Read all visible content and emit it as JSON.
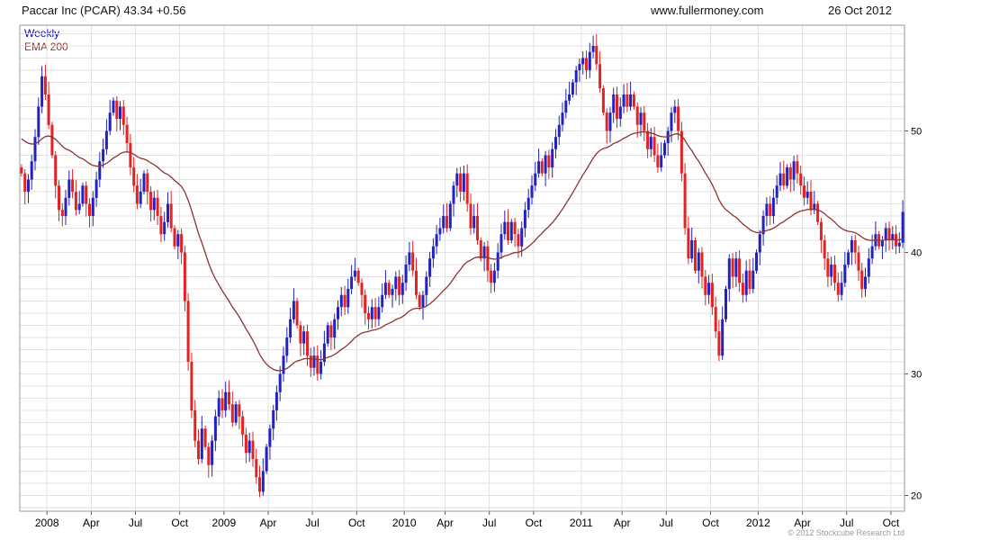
{
  "header": {
    "title": "Paccar Inc (PCAR)",
    "last_price": "43.34",
    "change": "+0.56",
    "website": "www.fullermoney.com",
    "date": "26 Oct 2012"
  },
  "legend": {
    "timeframe": "Weekly",
    "overlay": "EMA 200"
  },
  "footer": {
    "copyright": "© 2012 Stockcube Research Ltd"
  },
  "chart_data": {
    "type": "candlestick",
    "title": "Paccar Inc (PCAR) weekly candlestick chart with 200-day EMA",
    "interval": "weekly",
    "approx_start": "Nov 2007",
    "approx_end": "26 Oct 2012",
    "last_close": 43.34,
    "change": 0.56,
    "colors": {
      "up": "#2222c0",
      "down": "#e42222",
      "ema": "#8b3434",
      "grid": "#e2e2e2",
      "border": "#9a9a9a",
      "tick": "#555555"
    },
    "y_axis": {
      "side": "right",
      "ticks": [
        50,
        40,
        30,
        20
      ],
      "range": [
        18.7,
        58.7
      ]
    },
    "x_axis": {
      "ticks": [
        {
          "label": "2008",
          "week": 8
        },
        {
          "label": "Apr",
          "week": 21
        },
        {
          "label": "Jul",
          "week": 34
        },
        {
          "label": "Oct",
          "week": 47
        },
        {
          "label": "2009",
          "week": 60
        },
        {
          "label": "Apr",
          "week": 73
        },
        {
          "label": "Jul",
          "week": 86
        },
        {
          "label": "Oct",
          "week": 99
        },
        {
          "label": "2010",
          "week": 113
        },
        {
          "label": "Apr",
          "week": 125
        },
        {
          "label": "Jul",
          "week": 138
        },
        {
          "label": "Oct",
          "week": 151
        },
        {
          "label": "2011",
          "week": 165
        },
        {
          "label": "Apr",
          "week": 177
        },
        {
          "label": "Jul",
          "week": 190
        },
        {
          "label": "Oct",
          "week": 203
        },
        {
          "label": "2012",
          "week": 217
        },
        {
          "label": "Apr",
          "week": 230
        },
        {
          "label": "Jul",
          "week": 243
        },
        {
          "label": "Oct",
          "week": 256
        }
      ]
    },
    "ema": {
      "label": "EMA 200",
      "period_weeks": 40,
      "seed": 49.5
    },
    "first_open": 47.0,
    "closes": [
      46.5,
      45.0,
      46.0,
      47.5,
      49.5,
      52.0,
      54.5,
      53.0,
      50.5,
      48.0,
      45.5,
      43.5,
      43.0,
      44.5,
      46.0,
      45.0,
      43.5,
      44.0,
      45.5,
      44.0,
      43.0,
      44.5,
      46.0,
      47.5,
      48.5,
      50.0,
      51.5,
      52.5,
      51.0,
      52.0,
      50.5,
      49.0,
      47.0,
      45.5,
      44.0,
      45.0,
      46.5,
      45.0,
      43.5,
      44.5,
      43.0,
      41.5,
      42.5,
      44.0,
      42.0,
      40.5,
      41.5,
      40.0,
      36.0,
      31.0,
      27.0,
      24.5,
      23.0,
      25.5,
      24.0,
      22.5,
      24.5,
      26.5,
      28.0,
      27.0,
      28.5,
      27.5,
      26.0,
      27.5,
      26.5,
      25.0,
      23.5,
      24.5,
      23.0,
      21.5,
      20.3,
      22.0,
      24.0,
      25.5,
      27.0,
      28.5,
      30.0,
      31.5,
      33.0,
      34.5,
      36.0,
      34.0,
      32.5,
      33.5,
      31.5,
      30.5,
      31.5,
      30.0,
      31.0,
      32.5,
      34.0,
      33.0,
      34.5,
      35.5,
      36.5,
      35.5,
      37.0,
      38.0,
      38.5,
      37.5,
      36.5,
      35.0,
      34.5,
      35.5,
      34.5,
      35.5,
      36.5,
      37.5,
      36.5,
      37.0,
      38.0,
      36.5,
      37.5,
      39.0,
      40.0,
      38.5,
      36.5,
      35.5,
      36.5,
      38.0,
      39.5,
      40.5,
      41.5,
      42.0,
      43.0,
      42.0,
      44.0,
      45.5,
      46.5,
      45.0,
      46.5,
      44.0,
      42.0,
      43.0,
      41.0,
      39.5,
      40.5,
      38.5,
      37.5,
      38.5,
      40.0,
      41.5,
      42.5,
      41.0,
      42.5,
      41.5,
      40.5,
      42.0,
      43.5,
      44.5,
      45.5,
      46.5,
      47.5,
      46.5,
      48.0,
      47.0,
      48.5,
      49.5,
      50.5,
      51.5,
      52.5,
      53.0,
      54.0,
      55.0,
      55.5,
      56.0,
      55.0,
      56.5,
      57.0,
      55.5,
      53.5,
      51.5,
      50.0,
      51.5,
      53.0,
      51.0,
      52.0,
      53.0,
      52.0,
      53.0,
      52.0,
      50.5,
      51.5,
      50.0,
      48.5,
      49.5,
      48.0,
      47.0,
      48.0,
      49.0,
      50.0,
      51.5,
      52.0,
      50.0,
      46.5,
      42.0,
      39.5,
      41.0,
      38.5,
      40.0,
      38.0,
      36.5,
      37.5,
      35.5,
      33.5,
      31.5,
      34.5,
      37.0,
      39.5,
      38.0,
      39.5,
      37.5,
      36.5,
      38.5,
      37.0,
      38.5,
      40.0,
      41.5,
      43.0,
      44.0,
      43.0,
      44.5,
      45.5,
      46.5,
      45.5,
      47.0,
      46.0,
      47.5,
      46.5,
      45.5,
      44.5,
      45.0,
      43.5,
      44.0,
      42.5,
      41.0,
      39.5,
      38.0,
      39.0,
      37.5,
      36.5,
      37.5,
      39.0,
      40.0,
      41.0,
      40.0,
      38.5,
      37.0,
      38.0,
      39.5,
      40.5,
      41.5,
      40.5,
      41.0,
      42.0,
      41.0,
      41.5,
      40.5,
      40.8,
      43.34
    ]
  }
}
